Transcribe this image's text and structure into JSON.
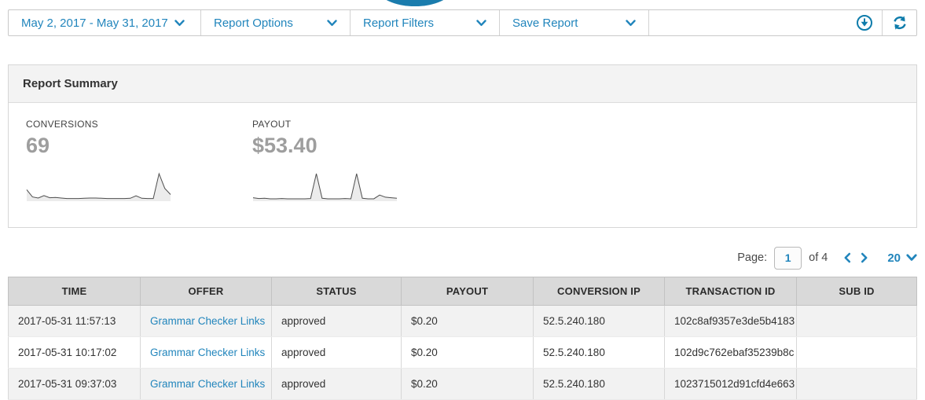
{
  "colors": {
    "accent_blue": "#2185bc",
    "icon_blue": "#0e7cab",
    "logo_blue": "#1a7cad",
    "stat_value_gray": "#9e9e9e",
    "table_header_bg": "#d9d9d9",
    "row_stripe": "#f2f2f2"
  },
  "toolbar": {
    "date_range": "May 2, 2017 - May 31, 2017",
    "menus": [
      {
        "label": "Report Options"
      },
      {
        "label": "Report Filters"
      },
      {
        "label": "Save Report"
      }
    ],
    "icons": {
      "download": "download-icon",
      "refresh": "refresh-icon"
    }
  },
  "report_summary": {
    "title": "Report Summary",
    "stats": [
      {
        "label": "CONVERSIONS",
        "value": "69",
        "sparkline": [
          0.4,
          0.13,
          0.09,
          0.18,
          0.1,
          0.11,
          0.09,
          0.07,
          0.07,
          0.07,
          0.08,
          0.09,
          0.09,
          0.08,
          0.07,
          0.07,
          0.07,
          0.07,
          0.08,
          0.17,
          0.08,
          0.07,
          0.07,
          1.0,
          0.45,
          0.22
        ]
      },
      {
        "label": "PAYOUT",
        "value": "$53.40",
        "sparkline": [
          0.1,
          0.07,
          0.08,
          0.06,
          0.06,
          0.07,
          0.06,
          0.06,
          0.06,
          0.06,
          0.07,
          1.0,
          0.08,
          0.06,
          0.06,
          0.06,
          0.07,
          0.06,
          1.0,
          0.08,
          0.06,
          0.06,
          0.2,
          0.12,
          0.1,
          0.08
        ]
      }
    ]
  },
  "chart_data": [
    {
      "type": "line",
      "title": "Conversions sparkline (May 2 - May 31, 2017)",
      "y_normalized": true,
      "values": [
        0.4,
        0.13,
        0.09,
        0.18,
        0.1,
        0.11,
        0.09,
        0.07,
        0.07,
        0.07,
        0.08,
        0.09,
        0.09,
        0.08,
        0.07,
        0.07,
        0.07,
        0.07,
        0.08,
        0.17,
        0.08,
        0.07,
        0.07,
        1.0,
        0.45,
        0.22
      ],
      "total_label": "69",
      "axes_hidden": true
    },
    {
      "type": "line",
      "title": "Payout sparkline (May 2 - May 31, 2017)",
      "y_normalized": true,
      "values": [
        0.1,
        0.07,
        0.08,
        0.06,
        0.06,
        0.07,
        0.06,
        0.06,
        0.06,
        0.06,
        0.07,
        1.0,
        0.08,
        0.06,
        0.06,
        0.06,
        0.07,
        0.06,
        1.0,
        0.08,
        0.06,
        0.06,
        0.2,
        0.12,
        0.1,
        0.08
      ],
      "total_label": "$53.40",
      "axes_hidden": true
    }
  ],
  "pagination": {
    "label": "Page:",
    "page": "1",
    "of_text": "of 4",
    "page_size": "20"
  },
  "table": {
    "columns": [
      {
        "label": "TIME",
        "key": "time"
      },
      {
        "label": "OFFER",
        "key": "offer"
      },
      {
        "label": "STATUS",
        "key": "status"
      },
      {
        "label": "PAYOUT",
        "key": "payout"
      },
      {
        "label": "CONVERSION IP",
        "key": "conversion_ip"
      },
      {
        "label": "TRANSACTION ID",
        "key": "transaction_id"
      },
      {
        "label": "SUB ID",
        "key": "sub_id"
      }
    ],
    "rows": [
      {
        "time": "2017-05-31 11:57:13",
        "offer": "Grammar Checker Links",
        "status": "approved",
        "payout": "$0.20",
        "conversion_ip": "52.5.240.180",
        "transaction_id": "102c8af9357e3de5b4183",
        "sub_id": ""
      },
      {
        "time": "2017-05-31 10:17:02",
        "offer": "Grammar Checker Links",
        "status": "approved",
        "payout": "$0.20",
        "conversion_ip": "52.5.240.180",
        "transaction_id": "102d9c762ebaf35239b8c",
        "sub_id": ""
      },
      {
        "time": "2017-05-31 09:37:03",
        "offer": "Grammar Checker Links",
        "status": "approved",
        "payout": "$0.20",
        "conversion_ip": "52.5.240.180",
        "transaction_id": "1023715012d91cfd4e663",
        "sub_id": ""
      }
    ]
  }
}
